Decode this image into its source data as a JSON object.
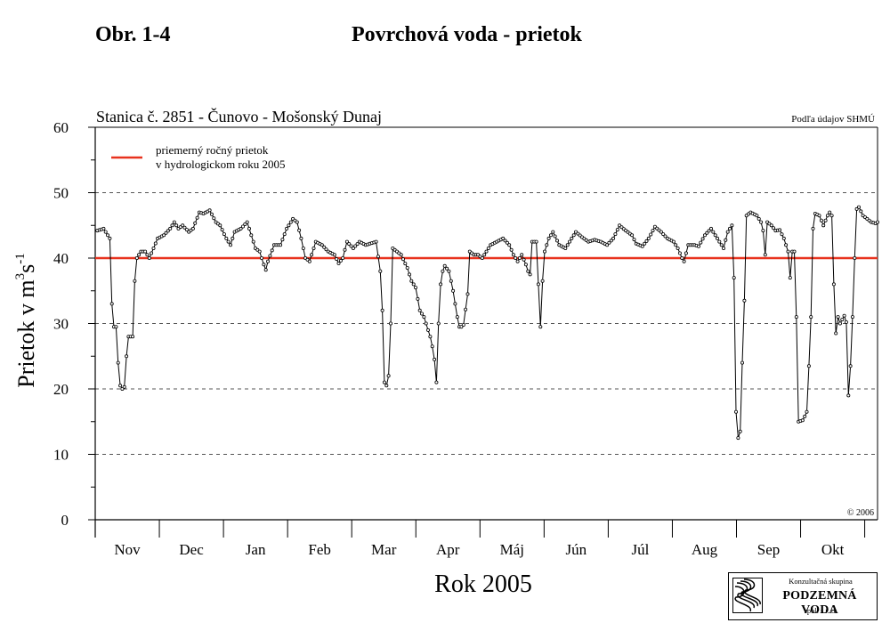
{
  "header": {
    "figure_label": "Obr. 1-4",
    "title": "Povrchová voda - prietok"
  },
  "chart_data": {
    "type": "line",
    "title": "Stanica č. 2851 - Čunovo - Mošonský Dunaj",
    "source_note": "Podľa údajov SHMÚ",
    "copyright": "© 2006",
    "xlabel": "Rok 2005",
    "ylabel_main": "Prietok v m",
    "ylabel_sup1": "3",
    "ylabel_mid": "s",
    "ylabel_sup2": "-1",
    "ylim": [
      0,
      60
    ],
    "yticks": [
      0,
      10,
      20,
      30,
      40,
      50,
      60
    ],
    "months": [
      "Nov",
      "Dec",
      "Jan",
      "Feb",
      "Mar",
      "Apr",
      "Máj",
      "Jún",
      "Júl",
      "Aug",
      "Sep",
      "Okt"
    ],
    "grid_y": [
      10,
      20,
      30,
      50
    ],
    "reference_line": {
      "value": 40,
      "label_line1": "priemerný ročný prietok",
      "label_line2": "v hydrologickom roku 2005",
      "color": "#e8321e"
    },
    "series_color": "#000000",
    "anchors": [
      [
        1,
        44.2
      ],
      [
        4,
        44.5
      ],
      [
        6,
        43.5
      ],
      [
        7,
        43
      ],
      [
        8,
        33
      ],
      [
        9,
        29.5
      ],
      [
        10,
        29.5
      ],
      [
        11,
        24
      ],
      [
        12,
        20.5
      ],
      [
        13,
        20
      ],
      [
        14,
        20.3
      ],
      [
        15,
        25
      ],
      [
        16,
        28
      ],
      [
        18,
        28
      ],
      [
        19,
        36.5
      ],
      [
        20,
        40
      ],
      [
        22,
        41
      ],
      [
        24,
        41
      ],
      [
        26,
        40
      ],
      [
        28,
        41.5
      ],
      [
        30,
        43
      ],
      [
        33,
        43.5
      ],
      [
        36,
        44.5
      ],
      [
        38,
        45.5
      ],
      [
        40,
        44.5
      ],
      [
        42,
        45
      ],
      [
        45,
        44
      ],
      [
        47,
        44.5
      ],
      [
        50,
        47
      ],
      [
        52,
        46.8
      ],
      [
        55,
        47.3
      ],
      [
        58,
        45.5
      ],
      [
        60,
        45
      ],
      [
        63,
        43
      ],
      [
        65,
        42
      ],
      [
        67,
        44
      ],
      [
        70,
        44.5
      ],
      [
        73,
        45.5
      ],
      [
        75,
        43.5
      ],
      [
        77,
        41.5
      ],
      [
        79,
        41
      ],
      [
        81,
        39
      ],
      [
        82,
        38.2
      ],
      [
        83,
        39.5
      ],
      [
        86,
        42
      ],
      [
        89,
        42
      ],
      [
        92,
        44.5
      ],
      [
        95,
        46
      ],
      [
        97,
        45.5
      ],
      [
        99,
        43
      ],
      [
        101,
        40
      ],
      [
        103,
        39.5
      ],
      [
        106,
        42.5
      ],
      [
        109,
        42
      ],
      [
        112,
        41
      ],
      [
        115,
        40.5
      ],
      [
        117,
        39.2
      ],
      [
        119,
        40
      ],
      [
        121,
        42.5
      ],
      [
        124,
        41.5
      ],
      [
        127,
        42.5
      ],
      [
        130,
        42
      ],
      [
        133,
        42.3
      ],
      [
        135,
        42.5
      ],
      [
        137,
        38
      ],
      [
        138,
        32
      ],
      [
        139,
        21
      ],
      [
        140,
        20.5
      ],
      [
        141,
        22
      ],
      [
        142,
        30
      ],
      [
        143,
        41.5
      ],
      [
        145,
        41
      ],
      [
        147,
        40.5
      ],
      [
        150,
        38.5
      ],
      [
        152,
        36.5
      ],
      [
        154,
        35.5
      ],
      [
        156,
        32
      ],
      [
        158,
        31
      ],
      [
        160,
        29
      ],
      [
        161,
        28
      ],
      [
        162,
        26.5
      ],
      [
        163,
        24.5
      ],
      [
        164,
        21
      ],
      [
        165,
        30
      ],
      [
        166,
        36
      ],
      [
        167,
        38
      ],
      [
        168,
        38.8
      ],
      [
        170,
        38
      ],
      [
        172,
        35
      ],
      [
        173,
        33
      ],
      [
        174,
        31
      ],
      [
        175,
        29.5
      ],
      [
        176,
        29.5
      ],
      [
        177,
        29.8
      ],
      [
        179,
        34.5
      ],
      [
        180,
        41
      ],
      [
        182,
        40.5
      ],
      [
        184,
        40.5
      ],
      [
        186,
        40
      ],
      [
        188,
        41
      ],
      [
        190,
        42
      ],
      [
        193,
        42.5
      ],
      [
        196,
        43
      ],
      [
        199,
        42
      ],
      [
        201,
        40.5
      ],
      [
        203,
        39.5
      ],
      [
        205,
        40.5
      ],
      [
        207,
        39
      ],
      [
        208,
        38
      ],
      [
        209,
        37.5
      ],
      [
        210,
        42.5
      ],
      [
        212,
        42.5
      ],
      [
        213,
        36
      ],
      [
        214,
        29.5
      ],
      [
        215,
        36.5
      ],
      [
        216,
        41
      ],
      [
        218,
        43
      ],
      [
        220,
        44
      ],
      [
        223,
        42
      ],
      [
        226,
        41.5
      ],
      [
        229,
        43
      ],
      [
        231,
        44
      ],
      [
        234,
        43.2
      ],
      [
        237,
        42.5
      ],
      [
        240,
        42.8
      ],
      [
        243,
        42.5
      ],
      [
        246,
        42
      ],
      [
        249,
        43
      ],
      [
        252,
        45
      ],
      [
        255,
        44.2
      ],
      [
        258,
        43.5
      ],
      [
        260,
        42.2
      ],
      [
        263,
        41.8
      ],
      [
        266,
        43
      ],
      [
        269,
        44.8
      ],
      [
        272,
        44
      ],
      [
        275,
        43
      ],
      [
        278,
        42.5
      ],
      [
        280,
        41.5
      ],
      [
        282,
        40
      ],
      [
        283,
        39.5
      ],
      [
        285,
        42
      ],
      [
        288,
        42
      ],
      [
        290,
        41.8
      ],
      [
        293,
        43.5
      ],
      [
        296,
        44.5
      ],
      [
        298,
        43.5
      ],
      [
        300,
        42.5
      ],
      [
        302,
        41.5
      ],
      [
        304,
        44
      ],
      [
        306,
        45
      ],
      [
        307,
        37
      ],
      [
        308,
        16.5
      ],
      [
        309,
        12.5
      ],
      [
        310,
        13.5
      ],
      [
        311,
        24
      ],
      [
        312,
        33.5
      ],
      [
        313,
        46.5
      ],
      [
        315,
        47
      ],
      [
        318,
        46.5
      ],
      [
        320,
        45.5
      ],
      [
        321,
        44.2
      ],
      [
        322,
        40.5
      ],
      [
        323,
        45.5
      ],
      [
        325,
        45
      ],
      [
        327,
        44.2
      ],
      [
        329,
        44.3
      ],
      [
        331,
        43
      ],
      [
        333,
        41
      ],
      [
        334,
        37
      ],
      [
        335,
        41
      ],
      [
        336,
        41
      ],
      [
        337,
        31
      ],
      [
        338,
        15
      ],
      [
        340,
        15.2
      ],
      [
        341,
        15.8
      ],
      [
        342,
        16.5
      ],
      [
        343,
        23.5
      ],
      [
        344,
        31
      ],
      [
        345,
        44.5
      ],
      [
        346,
        46.8
      ],
      [
        348,
        46.5
      ],
      [
        350,
        45
      ],
      [
        352,
        46.5
      ],
      [
        353,
        47
      ],
      [
        354,
        46.5
      ],
      [
        355,
        36
      ],
      [
        356,
        28.5
      ],
      [
        357,
        31
      ],
      [
        358,
        30
      ],
      [
        360,
        31.2
      ],
      [
        361,
        30.2
      ],
      [
        362,
        19
      ],
      [
        363,
        23.5
      ],
      [
        364,
        31
      ],
      [
        365,
        40
      ],
      [
        366,
        47.5
      ],
      [
        367,
        47.8
      ],
      [
        369,
        46.5
      ],
      [
        371,
        46
      ],
      [
        373,
        45.5
      ],
      [
        375,
        45.3
      ],
      [
        376,
        45.5
      ]
    ]
  },
  "logo": {
    "line1": "Konzultačná skupina",
    "line2": "PODZEMNÁ VODA",
    "line3": "spol.  s  r. o."
  }
}
